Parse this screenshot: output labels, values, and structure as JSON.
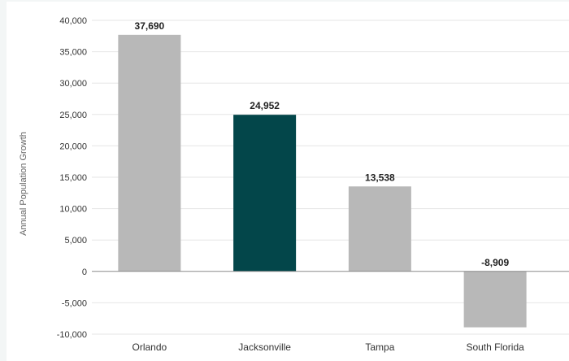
{
  "chart_data": {
    "type": "bar",
    "title": "",
    "xlabel": "",
    "ylabel": "Annual Population Growth",
    "categories": [
      "Orlando",
      "Jacksonville",
      "Tampa",
      "South Florida"
    ],
    "values": [
      37690,
      24952,
      13538,
      -8909
    ],
    "value_labels": [
      "37,690",
      "24,952",
      "13,538",
      "-8,909"
    ],
    "ylim": [
      -10000,
      40000
    ],
    "yticks": [
      -10000,
      -5000,
      0,
      5000,
      10000,
      15000,
      20000,
      25000,
      30000,
      35000,
      40000
    ],
    "ytick_labels": [
      "-10,000",
      "-5,000",
      "0",
      "5,000",
      "10,000",
      "15,000",
      "20,000",
      "25,000",
      "30,000",
      "35,000",
      "40,000"
    ],
    "grid": true,
    "legend": "none",
    "colors": {
      "default_bar": "#b8b8b8",
      "highlight_bar": "#03464a",
      "highlight_category": "Jacksonville",
      "gridline": "#e6e6e6",
      "zero_line": "#8a8a8a",
      "text": "#333333",
      "value_label": "#222222"
    }
  }
}
